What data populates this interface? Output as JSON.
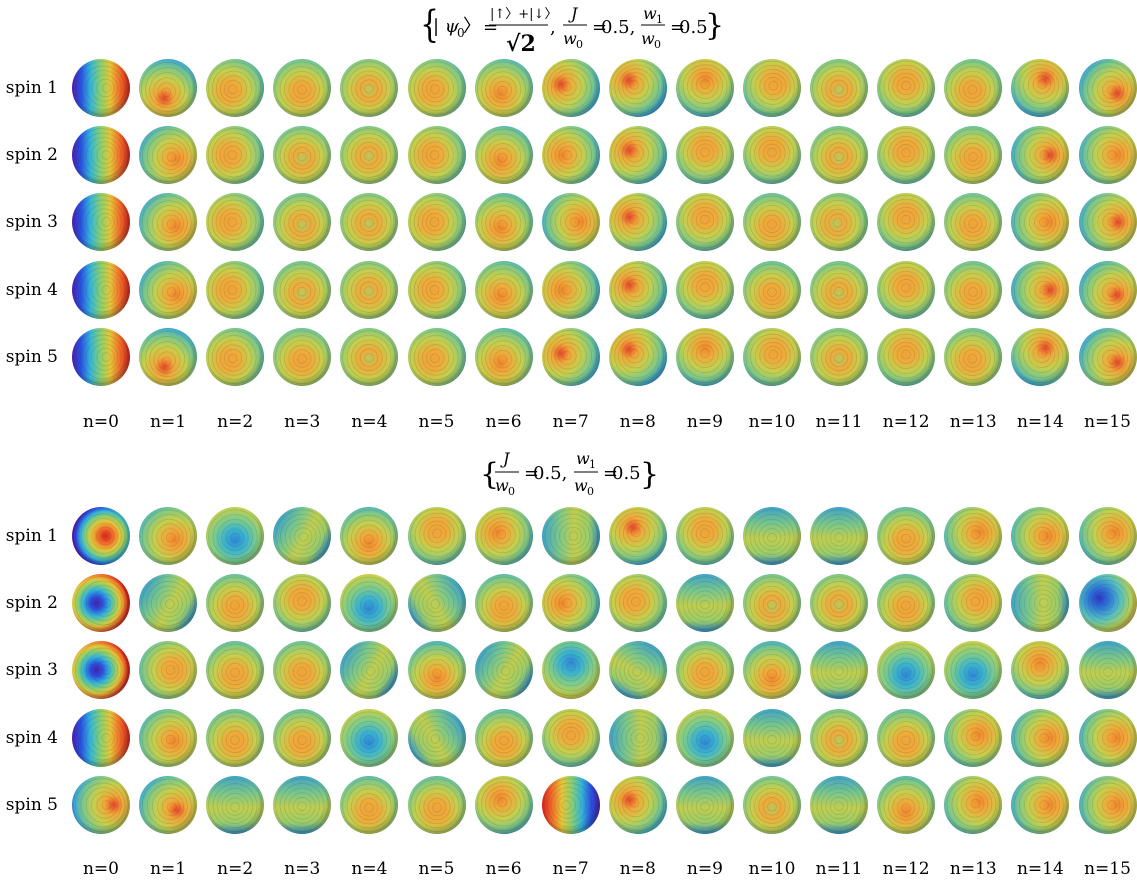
{
  "panels": [
    {
      "title": {
        "brace_open": "{",
        "psi": "| ψ",
        "psi_sub": "0",
        "ket_close": " 〉",
        "eq1": "=",
        "frac1_num": "|↑〉+|↓〉",
        "frac1_den": "√2",
        "comma1": ",",
        "J": "J",
        "w0": "w",
        "w0_sub": "0",
        "eq2": "=",
        "val1": "0.5,",
        "w1": "w",
        "w1_sub": "1",
        "w0b": "w",
        "w0b_sub": "0",
        "eq3": "=",
        "val2": "0.5",
        "brace_close": "}"
      },
      "row_labels": [
        "spin 1",
        "spin 2",
        "spin 3",
        "spin 4",
        "spin 5"
      ],
      "col_labels": [
        "n=0",
        "n=1",
        "n=2",
        "n=3",
        "n=4",
        "n=5",
        "n=6",
        "n=7",
        "n=8",
        "n=9",
        "n=10",
        "n=11",
        "n=12",
        "n=13",
        "n=14",
        "n=15"
      ],
      "spheres": [
        [
          {
            "t": "dipole",
            "a": 0,
            "s": 1.0
          },
          {
            "t": "blob",
            "a": 110,
            "s": 0.85
          },
          {
            "t": "blob",
            "a": 150,
            "s": 0.5
          },
          {
            "t": "blob",
            "a": 90,
            "s": 0.35
          },
          {
            "t": "blob",
            "a": 90,
            "s": 0.15
          },
          {
            "t": "blob",
            "a": 150,
            "s": 0.45
          },
          {
            "t": "blob",
            "a": 120,
            "s": 0.55
          },
          {
            "t": "blob",
            "a": 200,
            "s": 0.85
          },
          {
            "t": "blob",
            "a": 220,
            "s": 0.95
          },
          {
            "t": "blob",
            "a": 270,
            "s": 0.7
          },
          {
            "t": "blob",
            "a": 300,
            "s": 0.5
          },
          {
            "t": "blob",
            "a": 90,
            "s": 0.2
          },
          {
            "t": "blob",
            "a": 270,
            "s": 0.45
          },
          {
            "t": "blob",
            "a": 110,
            "s": 0.35
          },
          {
            "t": "blob",
            "a": 300,
            "s": 0.85
          },
          {
            "t": "blob",
            "a": 30,
            "s": 0.85
          }
        ],
        [
          {
            "t": "dipole",
            "a": 0,
            "s": 1.0
          },
          {
            "t": "blob",
            "a": 30,
            "s": 0.75
          },
          {
            "t": "blob",
            "a": 180,
            "s": 0.5
          },
          {
            "t": "blob",
            "a": 90,
            "s": 0.3
          },
          {
            "t": "blob",
            "a": 90,
            "s": 0.15
          },
          {
            "t": "blob",
            "a": 180,
            "s": 0.45
          },
          {
            "t": "blob",
            "a": 120,
            "s": 0.55
          },
          {
            "t": "blob",
            "a": 180,
            "s": 0.7
          },
          {
            "t": "blob",
            "a": 210,
            "s": 0.8
          },
          {
            "t": "blob",
            "a": 270,
            "s": 0.5
          },
          {
            "t": "blob",
            "a": 270,
            "s": 0.45
          },
          {
            "t": "blob",
            "a": 90,
            "s": 0.25
          },
          {
            "t": "blob",
            "a": 270,
            "s": 0.4
          },
          {
            "t": "blob",
            "a": 90,
            "s": 0.35
          },
          {
            "t": "blob",
            "a": 0,
            "s": 0.8
          },
          {
            "t": "blob",
            "a": 0,
            "s": 0.75
          }
        ],
        [
          {
            "t": "dipole",
            "a": 0,
            "s": 1.0
          },
          {
            "t": "blob",
            "a": 30,
            "s": 0.75
          },
          {
            "t": "blob",
            "a": 180,
            "s": 0.5
          },
          {
            "t": "blob",
            "a": 90,
            "s": 0.3
          },
          {
            "t": "blob",
            "a": 90,
            "s": 0.15
          },
          {
            "t": "blob",
            "a": 180,
            "s": 0.45
          },
          {
            "t": "blob",
            "a": 120,
            "s": 0.55
          },
          {
            "t": "blob",
            "a": 0,
            "s": 0.7
          },
          {
            "t": "blob",
            "a": 210,
            "s": 0.8
          },
          {
            "t": "blob",
            "a": 270,
            "s": 0.45
          },
          {
            "t": "blob",
            "a": 90,
            "s": 0.4
          },
          {
            "t": "blob",
            "a": 150,
            "s": 0.3
          },
          {
            "t": "blob",
            "a": 270,
            "s": 0.45
          },
          {
            "t": "blob",
            "a": 90,
            "s": 0.35
          },
          {
            "t": "blob",
            "a": 0,
            "s": 0.7
          },
          {
            "t": "blob",
            "a": 0,
            "s": 0.8
          }
        ],
        [
          {
            "t": "dipole",
            "a": 0,
            "s": 1.0
          },
          {
            "t": "blob",
            "a": 30,
            "s": 0.75
          },
          {
            "t": "blob",
            "a": 180,
            "s": 0.5
          },
          {
            "t": "blob",
            "a": 90,
            "s": 0.3
          },
          {
            "t": "blob",
            "a": 90,
            "s": 0.15
          },
          {
            "t": "blob",
            "a": 180,
            "s": 0.45
          },
          {
            "t": "blob",
            "a": 120,
            "s": 0.55
          },
          {
            "t": "blob",
            "a": 180,
            "s": 0.75
          },
          {
            "t": "blob",
            "a": 210,
            "s": 0.8
          },
          {
            "t": "blob",
            "a": 270,
            "s": 0.5
          },
          {
            "t": "blob",
            "a": 90,
            "s": 0.4
          },
          {
            "t": "blob",
            "a": 90,
            "s": 0.3
          },
          {
            "t": "blob",
            "a": 270,
            "s": 0.4
          },
          {
            "t": "blob",
            "a": 90,
            "s": 0.35
          },
          {
            "t": "blob",
            "a": 0,
            "s": 0.8
          },
          {
            "t": "blob",
            "a": 30,
            "s": 0.8
          }
        ],
        [
          {
            "t": "dipole",
            "a": 0,
            "s": 1.0
          },
          {
            "t": "blob",
            "a": 110,
            "s": 0.85
          },
          {
            "t": "blob",
            "a": 150,
            "s": 0.5
          },
          {
            "t": "blob",
            "a": 90,
            "s": 0.35
          },
          {
            "t": "blob",
            "a": 90,
            "s": 0.15
          },
          {
            "t": "blob",
            "a": 150,
            "s": 0.45
          },
          {
            "t": "blob",
            "a": 120,
            "s": 0.55
          },
          {
            "t": "blob",
            "a": 200,
            "s": 0.85
          },
          {
            "t": "blob",
            "a": 220,
            "s": 0.95
          },
          {
            "t": "blob",
            "a": 270,
            "s": 0.7
          },
          {
            "t": "blob",
            "a": 300,
            "s": 0.5
          },
          {
            "t": "blob",
            "a": 90,
            "s": 0.2
          },
          {
            "t": "blob",
            "a": 270,
            "s": 0.45
          },
          {
            "t": "blob",
            "a": 110,
            "s": 0.35
          },
          {
            "t": "blob",
            "a": 300,
            "s": 0.85
          },
          {
            "t": "blob",
            "a": 30,
            "s": 0.85
          }
        ]
      ]
    },
    {
      "title": {
        "brace_open": "{",
        "J": "J",
        "w0": "w",
        "w0_sub": "0",
        "eq2": "=",
        "val1": "0.5,",
        "w1": "w",
        "w1_sub": "1",
        "w0b": "w",
        "w0b_sub": "0",
        "eq3": "=",
        "val2": "0.5",
        "brace_close": "}"
      },
      "row_labels": [
        "spin 1",
        "spin 2",
        "spin 3",
        "spin 4",
        "spin 5"
      ],
      "col_labels": [
        "n=0",
        "n=1",
        "n=2",
        "n=3",
        "n=4",
        "n=5",
        "n=6",
        "n=7",
        "n=8",
        "n=9",
        "n=10",
        "n=11",
        "n=12",
        "n=13",
        "n=14",
        "n=15"
      ],
      "spheres": [
        [
          {
            "t": "ring",
            "a": 0,
            "s": 1.0
          },
          {
            "t": "blob",
            "a": 30,
            "s": 0.6
          },
          {
            "t": "cold",
            "a": 90,
            "s": 0.35
          },
          {
            "t": "stripe",
            "a": 30,
            "s": 0.3
          },
          {
            "t": "blob",
            "a": 90,
            "s": 0.6
          },
          {
            "t": "blob",
            "a": 270,
            "s": 0.5
          },
          {
            "t": "blob",
            "a": 210,
            "s": 0.6
          },
          {
            "t": "stripe",
            "a": 0,
            "s": 0.45
          },
          {
            "t": "blob",
            "a": 240,
            "s": 0.8
          },
          {
            "t": "blob",
            "a": 270,
            "s": 0.5
          },
          {
            "t": "stripe",
            "a": 90,
            "s": 0.3
          },
          {
            "t": "stripe",
            "a": 90,
            "s": 0.25
          },
          {
            "t": "blob",
            "a": 90,
            "s": 0.45
          },
          {
            "t": "blob",
            "a": 330,
            "s": 0.6
          },
          {
            "t": "blob",
            "a": 0,
            "s": 0.6
          },
          {
            "t": "blob",
            "a": 330,
            "s": 0.65
          }
        ],
        [
          {
            "t": "ringcold",
            "a": 0,
            "s": 1.0
          },
          {
            "t": "stripe",
            "a": 30,
            "s": 0.4
          },
          {
            "t": "blob",
            "a": 90,
            "s": 0.4
          },
          {
            "t": "blob",
            "a": 270,
            "s": 0.35
          },
          {
            "t": "cold",
            "a": 90,
            "s": 0.45
          },
          {
            "t": "stripe",
            "a": 150,
            "s": 0.35
          },
          {
            "t": "blob",
            "a": 90,
            "s": 0.5
          },
          {
            "t": "blob",
            "a": 180,
            "s": 0.7
          },
          {
            "t": "blob",
            "a": 210,
            "s": 0.45
          },
          {
            "t": "stripe",
            "a": 90,
            "s": 0.3
          },
          {
            "t": "blob",
            "a": 90,
            "s": 0.3
          },
          {
            "t": "blob",
            "a": 90,
            "s": 0.2
          },
          {
            "t": "blob",
            "a": 90,
            "s": 0.45
          },
          {
            "t": "blob",
            "a": 330,
            "s": 0.5
          },
          {
            "t": "stripe",
            "a": 0,
            "s": 0.7
          },
          {
            "t": "coldblob",
            "a": 210,
            "s": 0.8
          }
        ],
        [
          {
            "t": "ringcold",
            "a": 0,
            "s": 1.0
          },
          {
            "t": "blob",
            "a": 0,
            "s": 0.45
          },
          {
            "t": "blob",
            "a": 90,
            "s": 0.45
          },
          {
            "t": "blob",
            "a": 90,
            "s": 0.35
          },
          {
            "t": "stripe",
            "a": 30,
            "s": 0.35
          },
          {
            "t": "blob",
            "a": 90,
            "s": 0.65
          },
          {
            "t": "stripe",
            "a": 30,
            "s": 0.35
          },
          {
            "t": "cold",
            "a": 270,
            "s": 0.6
          },
          {
            "t": "stripe",
            "a": 120,
            "s": 0.35
          },
          {
            "t": "blob",
            "a": 90,
            "s": 0.35
          },
          {
            "t": "blob",
            "a": 90,
            "s": 0.7
          },
          {
            "t": "stripe",
            "a": 90,
            "s": 0.2
          },
          {
            "t": "cold",
            "a": 90,
            "s": 0.4
          },
          {
            "t": "cold",
            "a": 90,
            "s": 0.4
          },
          {
            "t": "blob",
            "a": 270,
            "s": 0.6
          },
          {
            "t": "stripe",
            "a": 90,
            "s": 0.35
          }
        ],
        [
          {
            "t": "dipole",
            "a": 0,
            "s": 1.0
          },
          {
            "t": "blob",
            "a": 30,
            "s": 0.55
          },
          {
            "t": "blob",
            "a": 90,
            "s": 0.4
          },
          {
            "t": "blob",
            "a": 90,
            "s": 0.4
          },
          {
            "t": "cold",
            "a": 90,
            "s": 0.35
          },
          {
            "t": "stripe",
            "a": 150,
            "s": 0.35
          },
          {
            "t": "blob",
            "a": 90,
            "s": 0.5
          },
          {
            "t": "blob",
            "a": 270,
            "s": 0.45
          },
          {
            "t": "stripe",
            "a": 0,
            "s": 0.35
          },
          {
            "t": "cold",
            "a": 90,
            "s": 0.35
          },
          {
            "t": "stripe",
            "a": 90,
            "s": 0.3
          },
          {
            "t": "blob",
            "a": 90,
            "s": 0.25
          },
          {
            "t": "blob",
            "a": 90,
            "s": 0.45
          },
          {
            "t": "blob",
            "a": 330,
            "s": 0.55
          },
          {
            "t": "blob",
            "a": 0,
            "s": 0.75
          },
          {
            "t": "blob",
            "a": 0,
            "s": 0.7
          }
        ],
        [
          {
            "t": "blob",
            "a": 0,
            "s": 1.0
          },
          {
            "t": "blob",
            "a": 30,
            "s": 0.8
          },
          {
            "t": "stripe",
            "a": 90,
            "s": 0.35
          },
          {
            "t": "stripe",
            "a": 90,
            "s": 0.25
          },
          {
            "t": "blob",
            "a": 90,
            "s": 0.5
          },
          {
            "t": "blob",
            "a": 90,
            "s": 0.45
          },
          {
            "t": "blob",
            "a": 240,
            "s": 0.6
          },
          {
            "t": "dipole",
            "a": 180,
            "s": 0.9
          },
          {
            "t": "blob",
            "a": 210,
            "s": 0.8
          },
          {
            "t": "stripe",
            "a": 90,
            "s": 0.3
          },
          {
            "t": "blob",
            "a": 90,
            "s": 0.3
          },
          {
            "t": "stripe",
            "a": 90,
            "s": 0.2
          },
          {
            "t": "blob",
            "a": 90,
            "s": 0.55
          },
          {
            "t": "blob",
            "a": 330,
            "s": 0.55
          },
          {
            "t": "blob",
            "a": 0,
            "s": 0.75
          },
          {
            "t": "blob",
            "a": 0,
            "s": 0.7
          }
        ]
      ]
    }
  ]
}
